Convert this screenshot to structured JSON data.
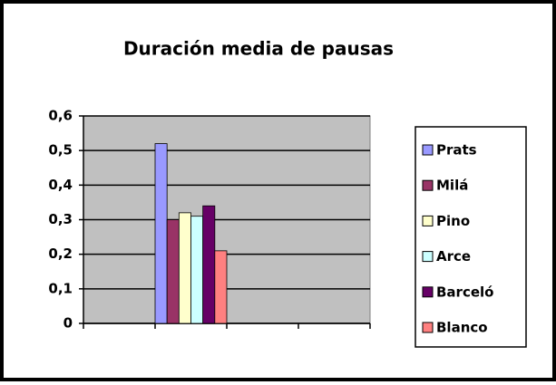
{
  "chart_data": {
    "type": "bar",
    "title": "Duración media de pausas",
    "categories": [
      null,
      null,
      null,
      null
    ],
    "series": [
      {
        "name": "Prats",
        "color": "#9999ff",
        "values": [
          null,
          0.52,
          null,
          null
        ]
      },
      {
        "name": "Milá",
        "color": "#993366",
        "values": [
          null,
          0.3,
          null,
          null
        ]
      },
      {
        "name": "Pino",
        "color": "#ffffcc",
        "values": [
          null,
          0.32,
          null,
          null
        ]
      },
      {
        "name": "Arce",
        "color": "#ccffff",
        "values": [
          null,
          0.31,
          null,
          null
        ]
      },
      {
        "name": "Barceló",
        "color": "#660066",
        "values": [
          null,
          0.34,
          null,
          null
        ]
      },
      {
        "name": "Blanco",
        "color": "#ff8080",
        "values": [
          null,
          0.21,
          null,
          null
        ]
      }
    ],
    "ylim": [
      0,
      0.6
    ],
    "yticks": [
      0,
      {
        "value": 0.1,
        "label": "0,1"
      },
      {
        "value": 0.2,
        "label": "0,2"
      },
      {
        "value": 0.3,
        "label": "0,3"
      },
      {
        "value": 0.4,
        "label": "0,4"
      },
      {
        "value": 0.5,
        "label": "0,5"
      },
      {
        "value": 0.6,
        "label": "0,6"
      }
    ],
    "grid": true,
    "legend": "right"
  }
}
